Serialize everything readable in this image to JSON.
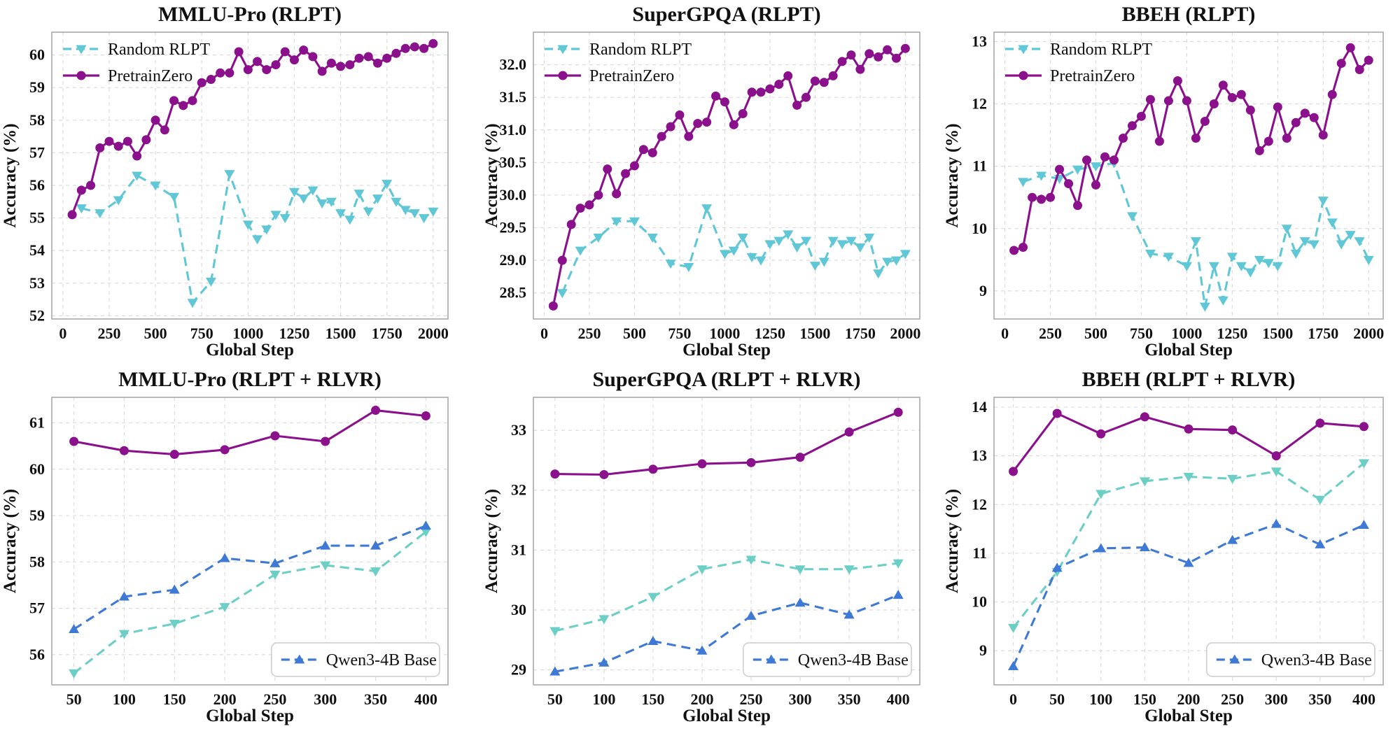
{
  "figure": {
    "background": "#ffffff",
    "grid_color": "#dcdcdc",
    "spine_color": "#a9a9a9",
    "text_color": "#111111"
  },
  "colors": {
    "pretrainzero": "#8A108C",
    "random_rlpt_top": "#5FC7D6",
    "random_rlpt_bottom": "#6CCFC6",
    "qwen3_4b_base": "#3E79D6"
  },
  "chart_data": [
    {
      "id": "mmlu_pro_rlpt",
      "type": "line",
      "title": "MMLU-Pro (RLPT)",
      "xlabel": "Global Step",
      "ylabel": "Accuracy (%)",
      "xlim": [
        -60,
        2080
      ],
      "ylim": [
        51.9,
        60.7
      ],
      "x_ticks": [
        0,
        250,
        500,
        750,
        1000,
        1250,
        1500,
        1750,
        2000
      ],
      "y_ticks": [
        52,
        53,
        54,
        55,
        56,
        57,
        58,
        59,
        60
      ],
      "y_tick_decimals": 0,
      "grid": true,
      "legend": {
        "position": "top-left",
        "frame": false
      },
      "series": [
        {
          "name": "Random RLPT",
          "color": "#5FC7D6",
          "style": "dashed",
          "marker": "triangle-down",
          "in_legend": true,
          "x": [
            100,
            200,
            300,
            400,
            500,
            600,
            700,
            800,
            900,
            1000,
            1050,
            1100,
            1150,
            1200,
            1250,
            1300,
            1350,
            1400,
            1450,
            1500,
            1550,
            1600,
            1650,
            1700,
            1750,
            1800,
            1850,
            1900,
            1950,
            2000
          ],
          "y": [
            55.3,
            55.15,
            55.55,
            56.3,
            56.0,
            55.65,
            52.4,
            53.05,
            56.35,
            54.8,
            54.35,
            54.65,
            55.1,
            55.0,
            55.8,
            55.6,
            55.85,
            55.45,
            55.5,
            55.15,
            54.95,
            55.75,
            55.2,
            55.6,
            56.05,
            55.5,
            55.25,
            55.15,
            55.0,
            55.2
          ]
        },
        {
          "name": "PretrainZero",
          "color": "#8A108C",
          "style": "solid",
          "marker": "circle",
          "in_legend": true,
          "x": [
            50,
            100,
            150,
            200,
            250,
            300,
            350,
            400,
            450,
            500,
            550,
            600,
            650,
            700,
            750,
            800,
            850,
            900,
            950,
            1000,
            1050,
            1100,
            1150,
            1200,
            1250,
            1300,
            1350,
            1400,
            1450,
            1500,
            1550,
            1600,
            1650,
            1700,
            1750,
            1800,
            1850,
            1900,
            1950,
            2000
          ],
          "y": [
            55.1,
            55.85,
            56.0,
            57.15,
            57.35,
            57.2,
            57.35,
            56.9,
            57.4,
            58.0,
            57.7,
            58.6,
            58.45,
            58.6,
            59.15,
            59.25,
            59.45,
            59.45,
            60.1,
            59.55,
            59.8,
            59.55,
            59.7,
            60.1,
            59.85,
            60.15,
            59.95,
            59.5,
            59.75,
            59.65,
            59.7,
            59.9,
            59.95,
            59.75,
            59.9,
            60.05,
            60.2,
            60.25,
            60.2,
            60.35
          ]
        }
      ]
    },
    {
      "id": "supergpqa_rlpt",
      "type": "line",
      "title": "SuperGPQA (RLPT)",
      "xlabel": "Global Step",
      "ylabel": "Accuracy (%)",
      "xlim": [
        -60,
        2080
      ],
      "ylim": [
        28.1,
        32.5
      ],
      "x_ticks": [
        0,
        250,
        500,
        750,
        1000,
        1250,
        1500,
        1750,
        2000
      ],
      "y_ticks": [
        28.5,
        29.0,
        29.5,
        30.0,
        30.5,
        31.0,
        31.5,
        32.0
      ],
      "y_tick_decimals": 1,
      "grid": true,
      "legend": {
        "position": "top-left",
        "frame": false
      },
      "series": [
        {
          "name": "Random RLPT",
          "color": "#5FC7D6",
          "style": "dashed",
          "marker": "triangle-down",
          "in_legend": true,
          "x": [
            100,
            200,
            300,
            400,
            500,
            600,
            700,
            800,
            900,
            1000,
            1050,
            1100,
            1150,
            1200,
            1250,
            1300,
            1350,
            1400,
            1450,
            1500,
            1550,
            1600,
            1650,
            1700,
            1750,
            1800,
            1850,
            1900,
            1950,
            2000
          ],
          "y": [
            28.5,
            29.15,
            29.35,
            29.6,
            29.6,
            29.35,
            28.95,
            28.9,
            29.8,
            29.1,
            29.15,
            29.35,
            29.05,
            29.0,
            29.25,
            29.3,
            29.4,
            29.2,
            29.3,
            28.92,
            28.98,
            29.3,
            29.25,
            29.3,
            29.2,
            29.35,
            28.8,
            28.98,
            29.0,
            29.1
          ]
        },
        {
          "name": "PretrainZero",
          "color": "#8A108C",
          "style": "solid",
          "marker": "circle",
          "in_legend": true,
          "x": [
            50,
            100,
            150,
            200,
            250,
            300,
            350,
            400,
            450,
            500,
            550,
            600,
            650,
            700,
            750,
            800,
            850,
            900,
            950,
            1000,
            1050,
            1100,
            1150,
            1200,
            1250,
            1300,
            1350,
            1400,
            1450,
            1500,
            1550,
            1600,
            1650,
            1700,
            1750,
            1800,
            1850,
            1900,
            1950,
            2000
          ],
          "y": [
            28.3,
            29.0,
            29.55,
            29.8,
            29.85,
            30.0,
            30.4,
            30.02,
            30.33,
            30.45,
            30.7,
            30.65,
            30.9,
            31.05,
            31.23,
            30.9,
            31.1,
            31.12,
            31.52,
            31.43,
            31.08,
            31.25,
            31.58,
            31.58,
            31.63,
            31.7,
            31.83,
            31.38,
            31.5,
            31.75,
            31.73,
            31.83,
            32.05,
            32.15,
            31.93,
            32.17,
            32.12,
            32.23,
            32.1,
            32.25
          ]
        }
      ]
    },
    {
      "id": "bbeh_rlpt",
      "type": "line",
      "title": "BBEH (RLPT)",
      "xlabel": "Global Step",
      "ylabel": "Accuracy (%)",
      "xlim": [
        -60,
        2080
      ],
      "ylim": [
        8.55,
        13.15
      ],
      "x_ticks": [
        0,
        250,
        500,
        750,
        1000,
        1250,
        1500,
        1750,
        2000
      ],
      "y_ticks": [
        9,
        10,
        11,
        12,
        13
      ],
      "y_tick_decimals": 0,
      "grid": true,
      "legend": {
        "position": "top-left",
        "frame": false
      },
      "series": [
        {
          "name": "Random RLPT",
          "color": "#5FC7D6",
          "style": "dashed",
          "marker": "triangle-down",
          "in_legend": true,
          "x": [
            100,
            200,
            300,
            400,
            500,
            600,
            700,
            800,
            900,
            1000,
            1050,
            1100,
            1150,
            1200,
            1250,
            1300,
            1350,
            1400,
            1450,
            1500,
            1550,
            1600,
            1650,
            1700,
            1750,
            1800,
            1850,
            1900,
            1950,
            2000
          ],
          "y": [
            10.75,
            10.85,
            10.8,
            10.95,
            11.0,
            11.05,
            10.2,
            9.6,
            9.55,
            9.4,
            9.8,
            8.75,
            9.4,
            8.85,
            9.55,
            9.4,
            9.3,
            9.5,
            9.45,
            9.4,
            10.0,
            9.6,
            9.8,
            9.75,
            10.45,
            10.1,
            9.75,
            9.9,
            9.8,
            9.5
          ]
        },
        {
          "name": "PretrainZero",
          "color": "#8A108C",
          "style": "solid",
          "marker": "circle",
          "in_legend": true,
          "x": [
            50,
            100,
            150,
            200,
            250,
            300,
            350,
            400,
            450,
            500,
            550,
            600,
            650,
            700,
            750,
            800,
            850,
            900,
            950,
            1000,
            1050,
            1100,
            1150,
            1200,
            1250,
            1300,
            1350,
            1400,
            1450,
            1500,
            1550,
            1600,
            1650,
            1700,
            1750,
            1800,
            1850,
            1900,
            1950,
            2000
          ],
          "y": [
            9.65,
            9.7,
            10.5,
            10.47,
            10.5,
            10.95,
            10.72,
            10.37,
            11.1,
            10.7,
            11.15,
            11.1,
            11.45,
            11.65,
            11.8,
            12.07,
            11.4,
            12.05,
            12.37,
            12.05,
            11.45,
            11.72,
            12.0,
            12.3,
            12.1,
            12.15,
            11.9,
            11.25,
            11.4,
            11.95,
            11.45,
            11.7,
            11.85,
            11.78,
            11.5,
            12.15,
            12.65,
            12.9,
            12.55,
            12.7
          ]
        }
      ]
    },
    {
      "id": "mmlu_pro_rlvr",
      "type": "line",
      "title": "MMLU-Pro (RLPT + RLVR)",
      "xlabel": "Global Step",
      "ylabel": "Accuracy (%)",
      "xlim": [
        28,
        422
      ],
      "ylim": [
        55.35,
        61.55
      ],
      "x_ticks": [
        50,
        100,
        150,
        200,
        250,
        300,
        350,
        400
      ],
      "y_ticks": [
        56,
        57,
        58,
        59,
        60,
        61
      ],
      "y_tick_decimals": 0,
      "grid": true,
      "legend": {
        "position": "bottom-right",
        "frame": true
      },
      "series": [
        {
          "name": "Random RLPT",
          "color": "#6CCFC6",
          "style": "dashed",
          "marker": "triangle-down",
          "in_legend": false,
          "x": [
            50,
            100,
            150,
            200,
            250,
            300,
            350,
            400
          ],
          "y": [
            55.6,
            56.45,
            56.67,
            57.03,
            57.73,
            57.93,
            57.8,
            58.65
          ]
        },
        {
          "name": "Qwen3-4B Base",
          "color": "#3E79D6",
          "style": "dashed",
          "marker": "triangle-up",
          "in_legend": true,
          "x": [
            50,
            100,
            150,
            200,
            250,
            300,
            350,
            400
          ],
          "y": [
            56.55,
            57.25,
            57.4,
            58.08,
            57.97,
            58.35,
            58.35,
            58.78
          ]
        },
        {
          "name": "PretrainZero",
          "color": "#8A108C",
          "style": "solid",
          "marker": "circle",
          "in_legend": false,
          "x": [
            50,
            100,
            150,
            200,
            250,
            300,
            350,
            400
          ],
          "y": [
            60.6,
            60.4,
            60.32,
            60.42,
            60.72,
            60.6,
            61.27,
            61.15
          ]
        }
      ]
    },
    {
      "id": "supergpqa_rlvr",
      "type": "line",
      "title": "SuperGPQA (RLPT + RLVR)",
      "xlabel": "Global Step",
      "ylabel": "Accuracy (%)",
      "xlim": [
        28,
        422
      ],
      "ylim": [
        28.75,
        33.55
      ],
      "x_ticks": [
        50,
        100,
        150,
        200,
        250,
        300,
        350,
        400
      ],
      "y_ticks": [
        29,
        30,
        31,
        32,
        33
      ],
      "y_tick_decimals": 0,
      "grid": true,
      "legend": {
        "position": "bottom-right",
        "frame": true
      },
      "series": [
        {
          "name": "Random RLPT",
          "color": "#6CCFC6",
          "style": "dashed",
          "marker": "triangle-down",
          "in_legend": false,
          "x": [
            50,
            100,
            150,
            200,
            250,
            300,
            350,
            400
          ],
          "y": [
            29.65,
            29.85,
            30.22,
            30.68,
            30.84,
            30.68,
            30.68,
            30.78
          ]
        },
        {
          "name": "Qwen3-4B Base",
          "color": "#3E79D6",
          "style": "dashed",
          "marker": "triangle-up",
          "in_legend": true,
          "x": [
            50,
            100,
            150,
            200,
            250,
            300,
            350,
            400
          ],
          "y": [
            28.97,
            29.12,
            29.48,
            29.32,
            29.9,
            30.12,
            29.92,
            30.25
          ]
        },
        {
          "name": "PretrainZero",
          "color": "#8A108C",
          "style": "solid",
          "marker": "circle",
          "in_legend": false,
          "x": [
            50,
            100,
            150,
            200,
            250,
            300,
            350,
            400
          ],
          "y": [
            32.27,
            32.26,
            32.35,
            32.44,
            32.46,
            32.55,
            32.97,
            33.3
          ]
        }
      ]
    },
    {
      "id": "bbeh_rlvr",
      "type": "line",
      "title": "BBEH (RLPT + RLVR)",
      "xlabel": "Global Step",
      "ylabel": "Accuracy (%)",
      "xlim": [
        -22,
        422
      ],
      "ylim": [
        8.3,
        14.2
      ],
      "x_ticks": [
        0,
        50,
        100,
        150,
        200,
        250,
        300,
        350,
        400
      ],
      "y_ticks": [
        9,
        10,
        11,
        12,
        13,
        14
      ],
      "y_tick_decimals": 0,
      "grid": true,
      "legend": {
        "position": "bottom-right",
        "frame": true
      },
      "series": [
        {
          "name": "Random RLPT",
          "color": "#6CCFC6",
          "style": "dashed",
          "marker": "triangle-down",
          "in_legend": false,
          "x": [
            0,
            50,
            100,
            150,
            200,
            250,
            300,
            350,
            400
          ],
          "y": [
            9.47,
            10.62,
            12.22,
            12.48,
            12.57,
            12.53,
            12.68,
            12.1,
            12.85
          ]
        },
        {
          "name": "Qwen3-4B Base",
          "color": "#3E79D6",
          "style": "dashed",
          "marker": "triangle-up",
          "in_legend": true,
          "x": [
            0,
            50,
            100,
            150,
            200,
            250,
            300,
            350,
            400
          ],
          "y": [
            8.68,
            10.7,
            11.1,
            11.12,
            10.8,
            11.27,
            11.6,
            11.18,
            11.58
          ]
        },
        {
          "name": "PretrainZero",
          "color": "#8A108C",
          "style": "solid",
          "marker": "circle",
          "in_legend": false,
          "x": [
            0,
            50,
            100,
            150,
            200,
            250,
            300,
            350,
            400
          ],
          "y": [
            12.68,
            13.87,
            13.45,
            13.8,
            13.55,
            13.53,
            13.0,
            13.67,
            13.6
          ]
        }
      ]
    }
  ]
}
